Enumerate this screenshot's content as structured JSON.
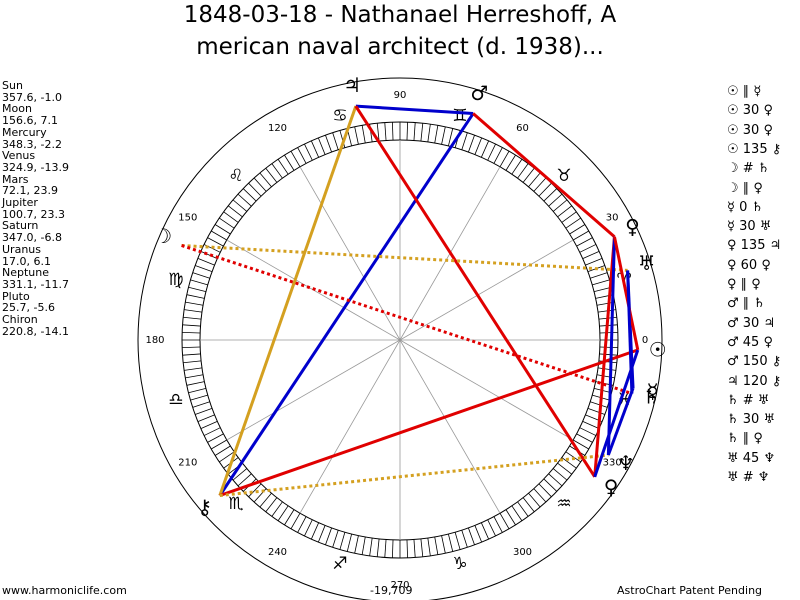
{
  "header": {
    "title_lines": [
      "1848-03-18 - Nathanael Herreshoff, A",
      "merican naval architect (d. 1938)..."
    ]
  },
  "planets": [
    {
      "name": "Sun",
      "glyph": "☉",
      "position": "357.6, -1.0"
    },
    {
      "name": "Moon",
      "glyph": "☽",
      "position": "156.6, 7.1"
    },
    {
      "name": "Mercury",
      "glyph": "☿",
      "position": "348.3, -2.2"
    },
    {
      "name": "Venus",
      "glyph": "♀",
      "position": "324.9, -13.9"
    },
    {
      "name": "Mars",
      "glyph": "♂",
      "position": "72.1, 23.9"
    },
    {
      "name": "Jupiter",
      "glyph": "♃",
      "position": "100.7, 23.3"
    },
    {
      "name": "Saturn",
      "glyph": "♄",
      "position": "347.0, -6.8"
    },
    {
      "name": "Uranus",
      "glyph": "♅",
      "position": "17.0, 6.1"
    },
    {
      "name": "Neptune",
      "glyph": "♆",
      "position": "331.1, -11.7"
    },
    {
      "name": "Pluto",
      "glyph": "♀",
      "position": "25.7, -5.6"
    },
    {
      "name": "Chiron",
      "glyph": "⚷",
      "position": "220.8, -14.1"
    }
  ],
  "wheel": {
    "degree_labels": [
      "0",
      "30",
      "60",
      "90",
      "120",
      "150",
      "180",
      "210",
      "240",
      "270",
      "300",
      "330"
    ],
    "signs": [
      "♈",
      "♉",
      "♊",
      "♋",
      "♌",
      "♍",
      "♎",
      "♏",
      "♐",
      "♑",
      "♒",
      "♓"
    ]
  },
  "aspects": [
    "☉ ∥ ☿",
    "☉ 30 ♀",
    "☉ 30 ♀",
    "☉ 135 ⚷",
    "☽ # ♄",
    "☽ ∥ ♀",
    "☿ 0 ♄",
    "☿ 30 ♅",
    "♀ 135 ♃",
    "♀ 60 ♀",
    "♀ ∥ ♀",
    "♂ ∥ ♄",
    "♂ 30 ♃",
    "♂ 45 ♀",
    "♂ 150 ⚷",
    "♃ 120 ⚷",
    "♄ # ♅",
    "♄ 30 ♅",
    "♄ ∥ ♀",
    "♅ 45 ♆",
    "♅ # ♆"
  ],
  "footer": {
    "left": "www.harmoniclife.com",
    "center": "-19,709",
    "right": "AstroChart Patent Pending"
  }
}
